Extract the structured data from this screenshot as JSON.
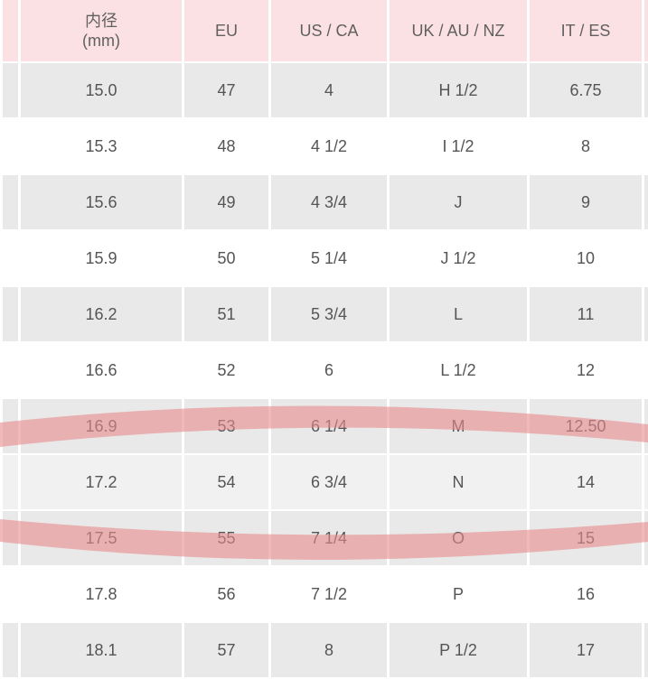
{
  "table": {
    "headers": [
      "内径\n(mm)",
      "EU",
      "US / CA",
      "UK / AU / NZ",
      "IT / ES"
    ],
    "header_line1": "内径",
    "header_line2": "(mm)",
    "rows": [
      [
        "15.0",
        "47",
        "4",
        "H 1/2",
        "6.75"
      ],
      [
        "15.3",
        "48",
        "4 1/2",
        "I 1/2",
        "8"
      ],
      [
        "15.6",
        "49",
        "4 3/4",
        "J",
        "9"
      ],
      [
        "15.9",
        "50",
        "5 1/4",
        "J 1/2",
        "10"
      ],
      [
        "16.2",
        "51",
        "5 3/4",
        "L",
        "11"
      ],
      [
        "16.6",
        "52",
        "6",
        "L 1/2",
        "12"
      ],
      [
        "16.9",
        "53",
        "6 1/4",
        "M",
        "12.50"
      ],
      [
        "17.2",
        "54",
        "6 3/4",
        "N",
        "14"
      ],
      [
        "17.5",
        "55",
        "7 1/4",
        "O",
        "15"
      ],
      [
        "17.8",
        "56",
        "7 1/2",
        "P",
        "16"
      ],
      [
        "18.1",
        "57",
        "8",
        "P 1/2",
        "17"
      ]
    ],
    "highlighted_rows": [
      "16.9",
      "17.5"
    ]
  },
  "colors": {
    "header_bg": "#fce1e4",
    "stripe": "#e9e9e9",
    "highlight": "#e88a8a"
  }
}
